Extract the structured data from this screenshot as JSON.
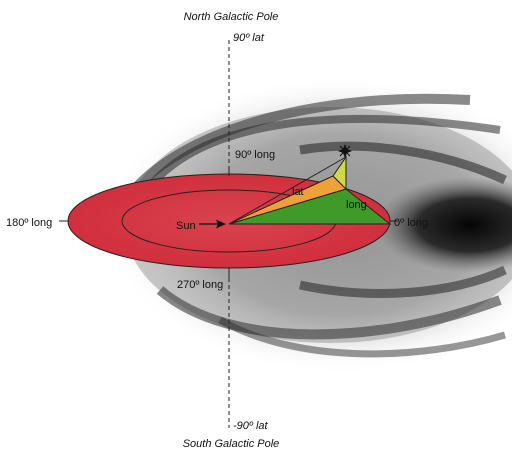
{
  "labels": {
    "north_pole": "North Galactic Pole",
    "north_lat": "90º lat",
    "south_pole": "South Galactic Pole",
    "south_lat": "-90º lat",
    "long_90": "90º long",
    "long_180": "180º long",
    "long_270": "270º long",
    "long_0": "0º long",
    "sun": "Sun",
    "lat": "lat",
    "long": "long"
  },
  "colors": {
    "plane": "#d83c47",
    "lat_triangle": "#f0a038",
    "long_triangle": "#3f9a2a",
    "upper_triangle": "#cfd84a",
    "galaxy_gray": "#555555"
  },
  "icons": {
    "star": "star-icon",
    "arrow": "arrow-icon"
  }
}
